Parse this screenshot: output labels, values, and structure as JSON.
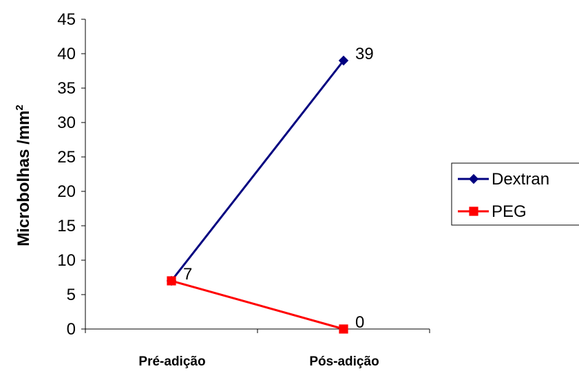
{
  "chart_data": {
    "type": "line",
    "categories": [
      "Pré-adição",
      "Pós-adição"
    ],
    "series": [
      {
        "name": "Dextran",
        "values": [
          7,
          39
        ],
        "color": "#000080",
        "marker": "diamond",
        "data_labels": [
          "7",
          "39"
        ]
      },
      {
        "name": "PEG",
        "values": [
          7,
          0
        ],
        "color": "#ff0000",
        "marker": "square",
        "data_labels": [
          "",
          "0"
        ]
      }
    ],
    "ylabel": "Microbolhas /mm",
    "ylabel_superscript": "2",
    "ylim": [
      0,
      45
    ],
    "yticks": [
      0,
      5,
      10,
      15,
      20,
      25,
      30,
      35,
      40,
      45
    ],
    "grid": false,
    "legend_position": "right"
  }
}
